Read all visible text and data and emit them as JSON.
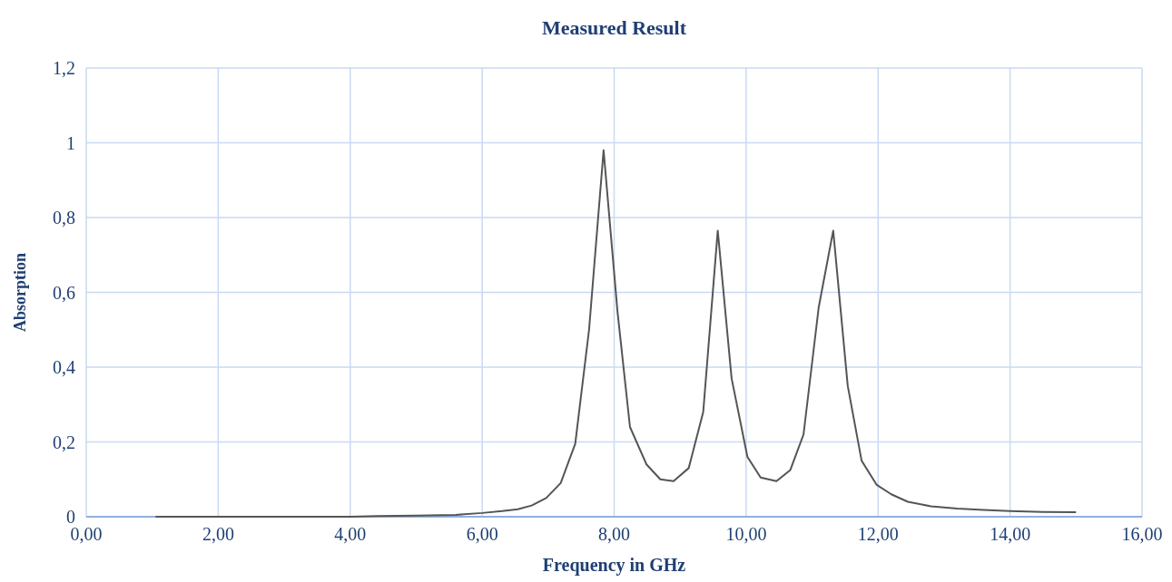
{
  "chart_data": {
    "type": "line",
    "title": "Measured Result",
    "xlabel": "Frequency in GHz",
    "ylabel": "Absorption",
    "xlim": [
      0,
      16
    ],
    "ylim": [
      0,
      1.2
    ],
    "xticks": [
      {
        "value": 0,
        "label": "0,00"
      },
      {
        "value": 2,
        "label": "2,00"
      },
      {
        "value": 4,
        "label": "4,00"
      },
      {
        "value": 6,
        "label": "6,00"
      },
      {
        "value": 8,
        "label": "8,00"
      },
      {
        "value": 10,
        "label": "10,00"
      },
      {
        "value": 12,
        "label": "12,00"
      },
      {
        "value": 14,
        "label": "14,00"
      },
      {
        "value": 16,
        "label": "16,00"
      }
    ],
    "yticks": [
      0,
      {
        "value": 0.2,
        "label": "0,2"
      },
      {
        "value": 0.4,
        "label": "0,4"
      },
      {
        "value": 0.6,
        "label": "0,6"
      },
      {
        "value": 0.8,
        "label": "0,8"
      },
      1,
      {
        "value": 1.2,
        "label": "1,2"
      }
    ],
    "grid": true,
    "marker": "none",
    "line_style": "solid",
    "series": [
      {
        "color": "#555555",
        "x": [
          1.05,
          2,
          3,
          4,
          4.4,
          5,
          5.6,
          6,
          6.3,
          6.54,
          6.75,
          6.97,
          7.19,
          7.41,
          7.62,
          7.84,
          8.05,
          8.24,
          8.49,
          8.7,
          8.9,
          9.13,
          9.35,
          9.57,
          9.78,
          10.02,
          10.22,
          10.46,
          10.67,
          10.87,
          11.1,
          11.32,
          11.54,
          11.75,
          11.98,
          12.2,
          12.45,
          12.8,
          13.2,
          13.6,
          14,
          14.5,
          15
        ],
        "values": [
          0,
          0,
          0,
          0,
          0.002,
          0.003,
          0.005,
          0.01,
          0.015,
          0.02,
          0.03,
          0.05,
          0.09,
          0.195,
          0.5,
          0.98,
          0.55,
          0.24,
          0.14,
          0.1,
          0.095,
          0.13,
          0.28,
          0.765,
          0.37,
          0.16,
          0.105,
          0.095,
          0.125,
          0.22,
          0.56,
          0.765,
          0.35,
          0.15,
          0.085,
          0.06,
          0.04,
          0.028,
          0.022,
          0.018,
          0.015,
          0.013,
          0.012
        ]
      }
    ]
  }
}
